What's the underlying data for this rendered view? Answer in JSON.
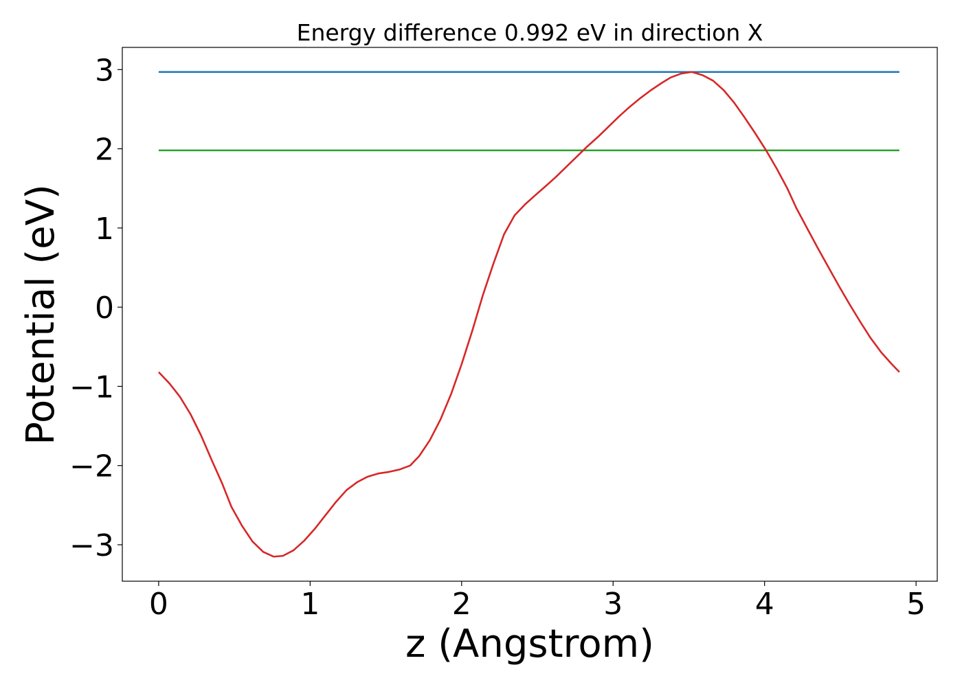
{
  "chart_data": {
    "type": "line",
    "title": "Energy difference 0.992 eV in direction X",
    "xlabel": "z (Angstrom)",
    "ylabel": "Potential (eV)",
    "xlim": [
      -0.24,
      5.14
    ],
    "ylim": [
      -3.46,
      3.28
    ],
    "xticks": [
      0,
      1,
      2,
      3,
      4,
      5
    ],
    "xtick_labels": [
      "0",
      "1",
      "2",
      "3",
      "4",
      "5"
    ],
    "yticks": [
      -3,
      -2,
      -1,
      0,
      1,
      2,
      3
    ],
    "ytick_labels": [
      "−3",
      "−2",
      "−1",
      "0",
      "1",
      "2",
      "3"
    ],
    "grid": false,
    "series": [
      {
        "color": "#1f77b4",
        "x": [
          0,
          4.89
        ],
        "y": [
          2.97,
          2.97
        ]
      },
      {
        "color": "#2ca02c",
        "x": [
          0,
          4.89
        ],
        "y": [
          1.98,
          1.98
        ]
      },
      {
        "color": "#d62728",
        "x": [
          0,
          0.07,
          0.14,
          0.21,
          0.28,
          0.35,
          0.42,
          0.48,
          0.55,
          0.62,
          0.69,
          0.76,
          0.82,
          0.89,
          0.96,
          1.03,
          1.1,
          1.17,
          1.24,
          1.31,
          1.38,
          1.45,
          1.52,
          1.59,
          1.66,
          1.72,
          1.79,
          1.86,
          1.93,
          2.0,
          2.07,
          2.14,
          2.21,
          2.28,
          2.35,
          2.42,
          2.49,
          2.55,
          2.62,
          2.69,
          2.76,
          2.83,
          2.9,
          2.97,
          3.04,
          3.11,
          3.18,
          3.25,
          3.32,
          3.38,
          3.45,
          3.52,
          3.59,
          3.66,
          3.73,
          3.8,
          3.87,
          3.94,
          4.01,
          4.08,
          4.15,
          4.21,
          4.28,
          4.35,
          4.42,
          4.49,
          4.56,
          4.63,
          4.7,
          4.77,
          4.84,
          4.89
        ],
        "y": [
          -0.82,
          -0.96,
          -1.13,
          -1.35,
          -1.62,
          -1.93,
          -2.23,
          -2.52,
          -2.76,
          -2.96,
          -3.09,
          -3.15,
          -3.14,
          -3.07,
          -2.95,
          -2.8,
          -2.63,
          -2.46,
          -2.31,
          -2.21,
          -2.14,
          -2.1,
          -2.08,
          -2.05,
          -2.0,
          -1.88,
          -1.68,
          -1.42,
          -1.1,
          -0.72,
          -0.3,
          0.15,
          0.55,
          0.92,
          1.16,
          1.3,
          1.42,
          1.52,
          1.64,
          1.77,
          1.9,
          2.03,
          2.15,
          2.28,
          2.41,
          2.53,
          2.64,
          2.74,
          2.83,
          2.9,
          2.95,
          2.97,
          2.93,
          2.86,
          2.74,
          2.58,
          2.39,
          2.19,
          1.98,
          1.75,
          1.5,
          1.25,
          1.0,
          0.75,
          0.51,
          0.27,
          0.04,
          -0.18,
          -0.39,
          -0.57,
          -0.72,
          -0.82
        ]
      }
    ]
  }
}
